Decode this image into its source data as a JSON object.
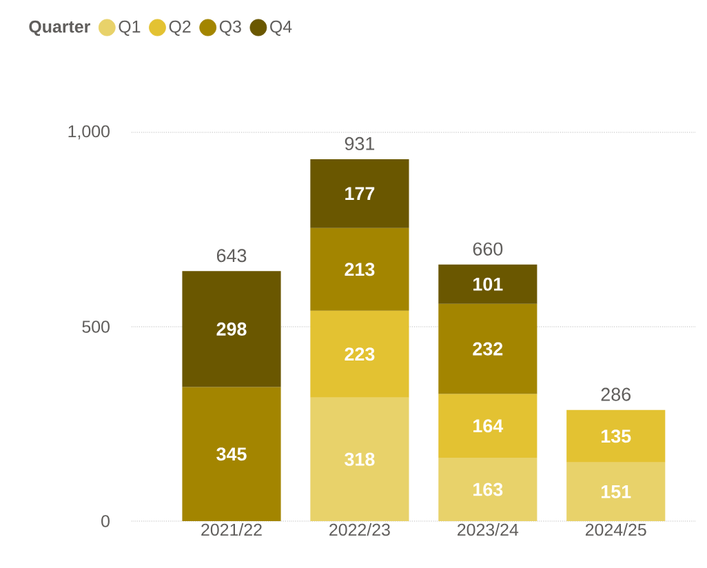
{
  "chart_data": {
    "type": "bar",
    "stacked": true,
    "legend_title": "Quarter",
    "legend": "top left",
    "categories": [
      "2021/22",
      "2022/23",
      "2023/24",
      "2024/25"
    ],
    "series": [
      {
        "name": "Q1",
        "color": "#e8d26a",
        "values": [
          null,
          318,
          163,
          151
        ]
      },
      {
        "name": "Q2",
        "color": "#e3c232",
        "values": [
          null,
          223,
          164,
          135
        ]
      },
      {
        "name": "Q3",
        "color": "#a38500",
        "values": [
          345,
          213,
          232,
          null
        ]
      },
      {
        "name": "Q4",
        "color": "#6a5700",
        "values": [
          298,
          177,
          101,
          null
        ]
      }
    ],
    "data_labels": true,
    "totals": [
      "643",
      "931",
      "660",
      "286"
    ],
    "ylim": [
      0,
      1000
    ],
    "yticks": [
      0,
      500,
      {
        "value": 1000,
        "label": "1,000"
      }
    ],
    "grid": "y"
  }
}
